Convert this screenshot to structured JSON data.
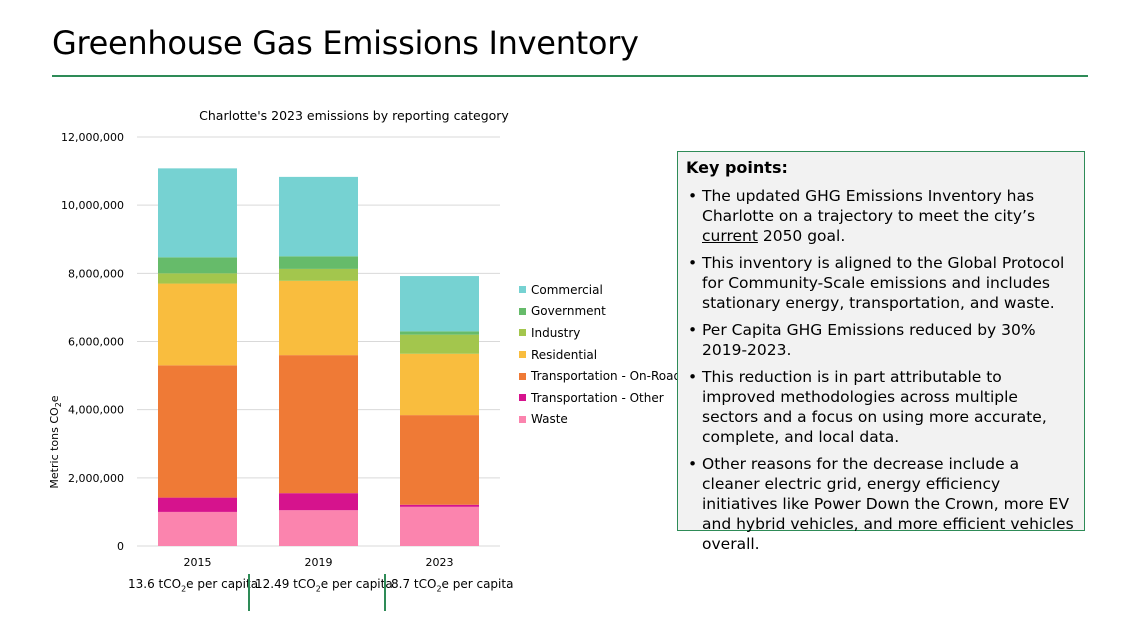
{
  "page": {
    "title": "Greenhouse Gas Emissions Inventory"
  },
  "colors": {
    "rule": "#2e8b57",
    "grid": "#d9d9d9",
    "Commercial": "#76d2d2",
    "Government": "#66bb6a",
    "Industry": "#a3c64d",
    "Residential": "#f9bd3e",
    "Transportation - On-Road": "#ef7a36",
    "Transportation - Other": "#d6138d",
    "Waste": "#fb84ae"
  },
  "chart_data": {
    "type": "bar",
    "stacked": true,
    "title": "Charlotte's 2023 emissions by reporting category",
    "ylabel": "Metric tons CO2e",
    "ylabel_main": "Metric tons CO",
    "ylabel_sub": "2",
    "ylabel_end": "e",
    "xlabel": "",
    "ylim": [
      0,
      12000000
    ],
    "yticks": [
      0,
      2000000,
      4000000,
      6000000,
      8000000,
      10000000,
      12000000
    ],
    "ytick_labels": [
      "0",
      "2,000,000",
      "4,000,000",
      "6,000,000",
      "8,000,000",
      "10,000,000",
      "12,000,000"
    ],
    "categories": [
      "2015",
      "2019",
      "2023"
    ],
    "grid": true,
    "legend_position": "right",
    "series": [
      {
        "name": "Waste",
        "values": [
          1000000,
          1050000,
          1150000
        ]
      },
      {
        "name": "Transportation - Other",
        "values": [
          420000,
          500000,
          60000
        ]
      },
      {
        "name": "Transportation - On-Road",
        "values": [
          3880000,
          4050000,
          2630000
        ]
      },
      {
        "name": "Residential",
        "values": [
          2400000,
          2180000,
          1800000
        ]
      },
      {
        "name": "Industry",
        "values": [
          300000,
          350000,
          560000
        ]
      },
      {
        "name": "Government",
        "values": [
          470000,
          370000,
          100000
        ]
      },
      {
        "name": "Commercial",
        "values": [
          2610000,
          2330000,
          1620000
        ]
      }
    ]
  },
  "legend": [
    "Commercial",
    "Government",
    "Industry",
    "Residential",
    "Transportation - On-Road",
    "Transportation - Other",
    "Waste"
  ],
  "per_capita": [
    {
      "value": "13.6 tCO",
      "sub": "2",
      "suffix": "e per capita"
    },
    {
      "value": "12.49 tCO",
      "sub": "2",
      "suffix": "e per capita"
    },
    {
      "value": "8.7 tCO",
      "sub": "2",
      "suffix": "e per capita"
    }
  ],
  "key_points": {
    "title": "Key points:",
    "items": [
      {
        "pre": "The updated GHG Emissions Inventory has Charlotte on a trajectory to meet the city’s ",
        "underline": "current",
        "post": " 2050 goal."
      },
      {
        "pre": "This inventory is aligned to the Global Protocol for Community-Scale emissions and includes stationary energy, transportation, and waste.",
        "underline": "",
        "post": ""
      },
      {
        "pre": "Per Capita GHG Emissions reduced by 30% 2019-2023.",
        "underline": "",
        "post": ""
      },
      {
        "pre": "This reduction is in part attributable to improved methodologies across multiple sectors and a focus on using more accurate, complete, and local data.",
        "underline": "",
        "post": ""
      },
      {
        "pre": "Other reasons for the decrease include a cleaner electric grid, energy efficiency initiatives like Power Down the Crown, more EV and hybrid vehicles, and more efficient vehicles overall.",
        "underline": "",
        "post": ""
      }
    ]
  }
}
